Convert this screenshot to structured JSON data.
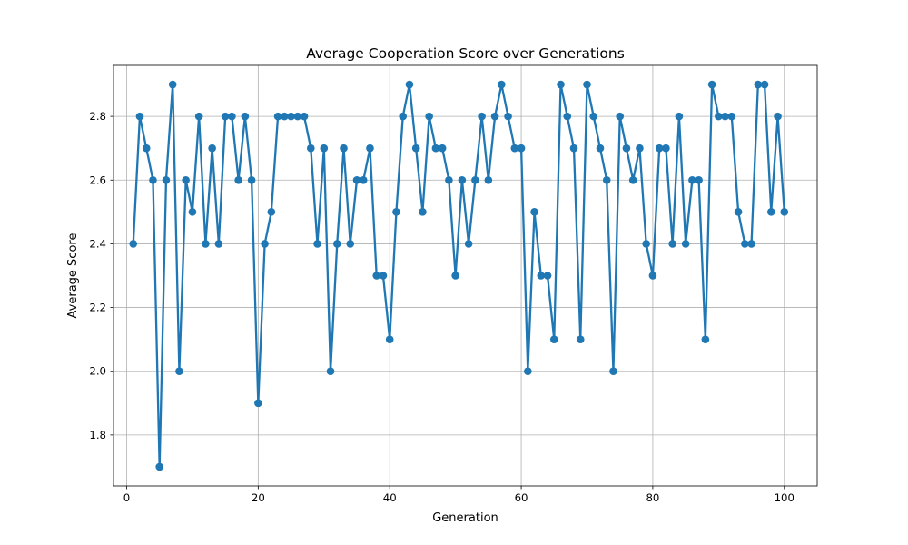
{
  "chart_data": {
    "type": "line",
    "title": "Average Cooperation Score over Generations",
    "xlabel": "Generation",
    "ylabel": "Average Score",
    "xlim": [
      -2,
      105
    ],
    "ylim": [
      1.64,
      2.96
    ],
    "xticks": [
      0,
      20,
      40,
      60,
      80,
      100
    ],
    "xtick_labels": [
      "0",
      "20",
      "40",
      "60",
      "80",
      "100"
    ],
    "yticks": [
      1.8,
      2.0,
      2.2,
      2.4,
      2.6,
      2.8
    ],
    "ytick_labels": [
      "1.8",
      "2.0",
      "2.2",
      "2.4",
      "2.6",
      "2.8"
    ],
    "grid": true,
    "series": [
      {
        "color": "#1f77b4",
        "marker": "circle",
        "x": [
          1,
          2,
          3,
          4,
          5,
          6,
          7,
          8,
          9,
          10,
          11,
          12,
          13,
          14,
          15,
          16,
          17,
          18,
          19,
          20,
          21,
          22,
          23,
          24,
          25,
          26,
          27,
          28,
          29,
          30,
          31,
          32,
          33,
          34,
          35,
          36,
          37,
          38,
          39,
          40,
          41,
          42,
          43,
          44,
          45,
          46,
          47,
          48,
          49,
          50,
          51,
          52,
          53,
          54,
          55,
          56,
          57,
          58,
          59,
          60,
          61,
          62,
          63,
          64,
          65,
          66,
          67,
          68,
          69,
          70,
          71,
          72,
          73,
          74,
          75,
          76,
          77,
          78,
          79,
          80,
          81,
          82,
          83,
          84,
          85,
          86,
          87,
          88,
          89,
          90,
          91,
          92,
          93,
          94,
          95,
          96,
          97,
          98,
          99,
          100
        ],
        "values": [
          2.4,
          2.8,
          2.7,
          2.6,
          1.7,
          2.6,
          2.9,
          2.0,
          2.6,
          2.5,
          2.8,
          2.4,
          2.7,
          2.4,
          2.8,
          2.8,
          2.6,
          2.8,
          2.6,
          1.9,
          2.4,
          2.5,
          2.8,
          2.8,
          2.8,
          2.8,
          2.8,
          2.7,
          2.4,
          2.7,
          2.0,
          2.4,
          2.7,
          2.4,
          2.6,
          2.6,
          2.7,
          2.3,
          2.3,
          2.1,
          2.5,
          2.8,
          2.9,
          2.7,
          2.5,
          2.8,
          2.7,
          2.7,
          2.6,
          2.3,
          2.6,
          2.4,
          2.6,
          2.8,
          2.6,
          2.8,
          2.9,
          2.8,
          2.7,
          2.7,
          2.0,
          2.5,
          2.3,
          2.3,
          2.1,
          2.9,
          2.8,
          2.7,
          2.1,
          2.9,
          2.8,
          2.7,
          2.6,
          2.0,
          2.8,
          2.7,
          2.6,
          2.7,
          2.4,
          2.3,
          2.7,
          2.7,
          2.4,
          2.8,
          2.4,
          2.6,
          2.6,
          2.1,
          2.9,
          2.8,
          2.8,
          2.8,
          2.5,
          2.4,
          2.4,
          2.9,
          2.9,
          2.5,
          2.8,
          2.5
        ]
      }
    ]
  }
}
